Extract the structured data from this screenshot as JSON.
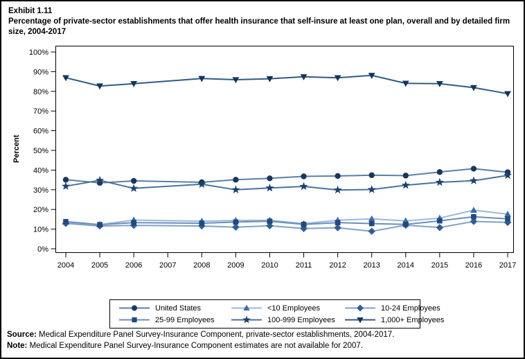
{
  "header": {
    "exhibit_number": "Exhibit 1.11",
    "title": "Percentage of private-sector establishments that offer health insurance that self-insure at least one plan, overall and by detailed firm size, 2004-2017"
  },
  "chart_data": {
    "type": "line",
    "title": "Percentage of private-sector establishments that offer health insurance that self-insure at least one plan, overall and by detailed firm size, 2004-2017",
    "xlabel": "",
    "ylabel": "Percent",
    "ylim": [
      0,
      100
    ],
    "grid": false,
    "legend_position": "bottom",
    "missing_data_years": [
      2007
    ],
    "x": [
      2004,
      2005,
      2006,
      2007,
      2008,
      2009,
      2010,
      2011,
      2012,
      2013,
      2014,
      2015,
      2016,
      2017
    ],
    "y_ticks": [
      "0%",
      "10%",
      "20%",
      "30%",
      "40%",
      "50%",
      "60%",
      "70%",
      "80%",
      "90%",
      "100%"
    ],
    "series": [
      {
        "name": "United States",
        "marker": "circle",
        "color": "#17375e",
        "line_color": "#5c7fa3",
        "values": [
          35.1,
          33.5,
          34.5,
          null,
          33.8,
          35.1,
          35.8,
          36.8,
          37.0,
          37.4,
          37.2,
          39.0,
          40.7,
          38.9
        ]
      },
      {
        "name": "<10 Employees",
        "marker": "triangle-up",
        "color": "#3a6da6",
        "line_color": "#9bb8d9",
        "values": [
          13.5,
          12.3,
          14.6,
          null,
          14.0,
          14.4,
          14.5,
          12.8,
          14.5,
          15.2,
          14.2,
          15.6,
          19.6,
          17.6
        ]
      },
      {
        "name": "10-24 Employees",
        "marker": "diamond",
        "color": "#2d5f97",
        "line_color": "#7fa1c9",
        "values": [
          12.9,
          11.6,
          11.9,
          null,
          11.6,
          11.0,
          11.7,
          10.3,
          10.7,
          8.9,
          12.0,
          10.8,
          13.9,
          13.4
        ]
      },
      {
        "name": "25-99 Employees",
        "marker": "square",
        "color": "#1f4a80",
        "line_color": "#6b8fb8",
        "values": [
          13.8,
          12.3,
          13.3,
          null,
          13.0,
          13.6,
          14.0,
          12.4,
          13.3,
          12.8,
          12.4,
          14.2,
          16.3,
          15.2
        ]
      },
      {
        "name": "100-999 Employees",
        "marker": "star",
        "color": "#1b416e",
        "line_color": "#49729e",
        "values": [
          31.8,
          34.8,
          30.7,
          null,
          32.8,
          30.0,
          30.9,
          31.7,
          29.9,
          30.1,
          32.3,
          33.8,
          34.6,
          37.3
        ]
      },
      {
        "name": "1,000+ Employees",
        "marker": "triangle-down",
        "color": "#12355f",
        "line_color": "#2f5a85",
        "values": [
          86.9,
          82.7,
          83.9,
          null,
          86.5,
          85.9,
          86.4,
          87.4,
          86.9,
          88.1,
          84.1,
          83.9,
          81.9,
          78.8
        ]
      }
    ]
  },
  "footer": {
    "source_label": "Source:",
    "source_text": " Medical Expenditure Panel Survey-Insurance Component, private-sector establishments, 2004-2017.",
    "note_label": "Note:",
    "note_text": " Medical Expenditure Panel Survey-Insurance Component estimates are not available for 2007."
  }
}
